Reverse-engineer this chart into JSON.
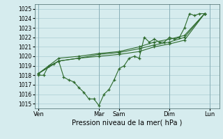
{
  "xlabel": "Pression niveau de la mer( hPa )",
  "ylim": [
    1014.5,
    1025.5
  ],
  "yticks": [
    1015,
    1016,
    1017,
    1018,
    1019,
    1020,
    1021,
    1022,
    1023,
    1024,
    1025
  ],
  "xtick_labels": [
    "Ven",
    "Mar",
    "Sam",
    "Dim",
    "Lun"
  ],
  "xtick_positions": [
    0.0,
    3.0,
    4.0,
    6.5,
    8.5
  ],
  "xlim": [
    -0.2,
    9.0
  ],
  "background_color": "#d6ecee",
  "grid_color": "#aacdd4",
  "line_color": "#2d6a2d",
  "vline_color": "#8ab0b8",
  "series1": [
    [
      0.0,
      1018.0
    ],
    [
      0.25,
      1018.0
    ],
    [
      0.5,
      1019.0
    ],
    [
      0.75,
      1019.2
    ],
    [
      1.0,
      1019.5
    ],
    [
      1.25,
      1017.8
    ],
    [
      1.5,
      1017.5
    ],
    [
      1.75,
      1017.3
    ],
    [
      2.0,
      1016.7
    ],
    [
      2.25,
      1016.2
    ],
    [
      2.5,
      1015.5
    ],
    [
      2.75,
      1015.5
    ],
    [
      3.0,
      1014.8
    ],
    [
      3.25,
      1016.0
    ],
    [
      3.5,
      1016.5
    ],
    [
      3.75,
      1017.5
    ],
    [
      4.0,
      1018.7
    ],
    [
      4.25,
      1019.0
    ],
    [
      4.5,
      1019.8
    ],
    [
      4.75,
      1020.0
    ],
    [
      5.0,
      1019.8
    ],
    [
      5.25,
      1022.0
    ],
    [
      5.5,
      1021.5
    ],
    [
      5.75,
      1021.8
    ],
    [
      6.0,
      1021.5
    ],
    [
      6.25,
      1021.5
    ],
    [
      6.5,
      1022.0
    ],
    [
      6.75,
      1021.8
    ],
    [
      7.0,
      1022.0
    ],
    [
      7.25,
      1023.0
    ],
    [
      7.5,
      1024.5
    ],
    [
      7.75,
      1024.3
    ],
    [
      8.0,
      1024.5
    ],
    [
      8.25,
      1024.5
    ]
  ],
  "series2": [
    [
      0.0,
      1018.2
    ],
    [
      1.0,
      1019.5
    ],
    [
      2.0,
      1019.8
    ],
    [
      3.0,
      1020.0
    ],
    [
      4.0,
      1020.2
    ],
    [
      5.0,
      1020.5
    ],
    [
      5.75,
      1021.0
    ],
    [
      6.5,
      1021.3
    ],
    [
      7.25,
      1021.7
    ],
    [
      8.25,
      1024.5
    ]
  ],
  "series3": [
    [
      0.0,
      1018.2
    ],
    [
      1.0,
      1019.5
    ],
    [
      2.0,
      1019.8
    ],
    [
      3.0,
      1020.2
    ],
    [
      4.0,
      1020.4
    ],
    [
      5.0,
      1020.8
    ],
    [
      5.75,
      1021.2
    ],
    [
      6.5,
      1021.5
    ],
    [
      7.25,
      1022.0
    ],
    [
      8.25,
      1024.5
    ]
  ],
  "series4": [
    [
      0.0,
      1018.2
    ],
    [
      1.0,
      1019.8
    ],
    [
      2.0,
      1020.0
    ],
    [
      3.0,
      1020.3
    ],
    [
      4.0,
      1020.5
    ],
    [
      5.0,
      1021.0
    ],
    [
      5.75,
      1021.5
    ],
    [
      6.5,
      1021.8
    ],
    [
      7.25,
      1022.2
    ],
    [
      8.25,
      1024.5
    ]
  ]
}
